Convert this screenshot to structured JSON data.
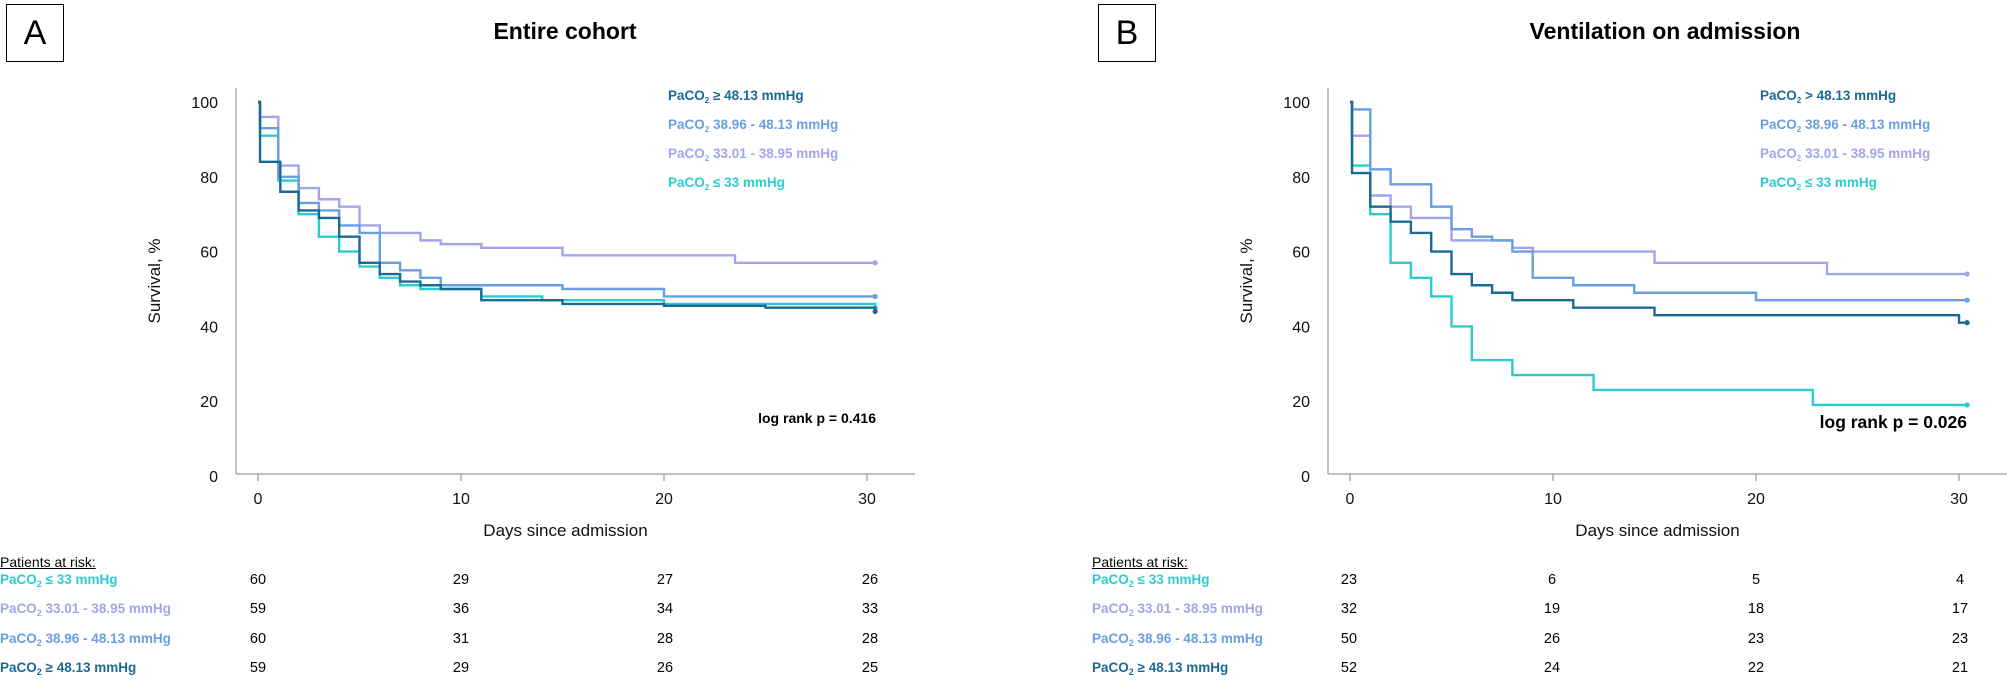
{
  "chart_data": [
    {
      "type": "line",
      "panel_label": "A",
      "title": "Entire cohort",
      "xlabel": "Days since admission",
      "ylabel": "Survival, %",
      "xlim": [
        -1,
        32
      ],
      "ylim": [
        0,
        100
      ],
      "x_ticks": [
        0,
        10,
        20,
        30
      ],
      "y_ticks": [
        0,
        20,
        40,
        60,
        80,
        100
      ],
      "grid": false,
      "legend_position": "top-right",
      "annotation": "log rank p = 0.416",
      "step": true,
      "series": [
        {
          "name": "PaCO2 ≥ 48.13 mmHg",
          "color": "#1b6a94",
          "x": [
            0,
            0.1,
            1.1,
            2,
            3,
            4,
            5,
            6,
            7,
            8,
            9,
            11,
            15,
            20,
            25,
            30.4
          ],
          "y": [
            100,
            84,
            76,
            71,
            69,
            64,
            57,
            54,
            52,
            51,
            50,
            47,
            46,
            45.5,
            45,
            44
          ]
        },
        {
          "name": "PaCO2 38.96 - 48.13 mmHg",
          "color": "#6a9ee4",
          "x": [
            0,
            0.1,
            1,
            2,
            3,
            4,
            5,
            6,
            7,
            8,
            9,
            10,
            11,
            15,
            20,
            30.4
          ],
          "y": [
            100,
            93,
            80,
            73,
            71,
            67,
            65,
            57,
            55,
            53,
            51,
            51,
            51,
            50,
            48,
            48
          ]
        },
        {
          "name": "PaCO2 33.01 - 38.95 mmHg",
          "color": "#a2a4ec",
          "x": [
            0,
            0.1,
            1,
            2,
            3,
            4,
            5,
            6,
            8,
            9,
            11,
            15,
            23.5,
            30.4
          ],
          "y": [
            100,
            96,
            83,
            77,
            74,
            72,
            67,
            65,
            63,
            62,
            61,
            59,
            57,
            57
          ]
        },
        {
          "name": "PaCO2 ≤ 33 mmHg",
          "color": "#2bccd0",
          "x": [
            0,
            0.1,
            1,
            2,
            3,
            4,
            5,
            6,
            7,
            8,
            11,
            14,
            20,
            30.4
          ],
          "y": [
            100,
            91,
            79,
            70,
            64,
            60,
            56,
            53,
            51,
            50,
            48,
            47,
            46,
            45
          ]
        }
      ],
      "risk_table": {
        "header": "Patients at risk:",
        "times": [
          0,
          10,
          20,
          30
        ],
        "rows": [
          {
            "label": "PaCO₂ ≤ 33 mmHg",
            "color": "#2bccd0",
            "values": [
              "60",
              "29",
              "27",
              "26"
            ]
          },
          {
            "label": "PaCO₂ 33.01 - 38.95 mmHg",
            "color": "#a2a4ec",
            "values": [
              "59",
              "36",
              "34",
              "33"
            ]
          },
          {
            "label": "PaCO₂ 38.96 - 48.13 mmHg",
            "color": "#6a9ee4",
            "values": [
              "60",
              "31",
              "28",
              "28"
            ]
          },
          {
            "label": "PaCO₂ ≥ 48.13 mmHg",
            "color": "#1b6a94",
            "values": [
              "59",
              "29",
              "26",
              "25"
            ]
          }
        ]
      }
    },
    {
      "type": "line",
      "panel_label": "B",
      "title": "Ventilation on admission",
      "xlabel": "Days since admission",
      "ylabel": "Survival, %",
      "xlim": [
        -1,
        32
      ],
      "ylim": [
        0,
        100
      ],
      "x_ticks": [
        0,
        10,
        20,
        30
      ],
      "y_ticks": [
        0,
        20,
        40,
        60,
        80,
        100
      ],
      "grid": false,
      "legend_position": "top-right",
      "annotation": "log rank p = 0.026",
      "step": true,
      "series": [
        {
          "name": "PaCO2 > 48.13 mmHg",
          "color": "#1b6a94",
          "x": [
            0,
            0.1,
            1,
            2,
            3,
            4,
            5,
            6,
            7,
            8,
            11,
            15,
            20,
            30,
            30.4
          ],
          "y": [
            100,
            81,
            72,
            68,
            65,
            60,
            54,
            51,
            49,
            47,
            45,
            43,
            43,
            41,
            41
          ]
        },
        {
          "name": "PaCO2 38.96 - 48.13 mmHg",
          "color": "#6a9ee4",
          "x": [
            0,
            0.1,
            1,
            2,
            4,
            5,
            6,
            7,
            8,
            9,
            11,
            14,
            20,
            30.4
          ],
          "y": [
            100,
            98,
            82,
            78,
            72,
            66,
            64,
            63,
            60,
            53,
            51,
            49,
            47,
            47
          ]
        },
        {
          "name": "PaCO2 33.01 - 38.95 mmHg",
          "color": "#a2a4ec",
          "x": [
            0,
            0.1,
            1,
            2,
            3,
            5,
            8,
            9,
            15,
            23.5,
            30.4
          ],
          "y": [
            100,
            91,
            75,
            72,
            69,
            63,
            61,
            60,
            57,
            54,
            54
          ]
        },
        {
          "name": "PaCO2 ≤ 33 mmHg",
          "color": "#2bccd0",
          "x": [
            0,
            0.1,
            1,
            2,
            3,
            4,
            5,
            6,
            8,
            12,
            22.8,
            30.4
          ],
          "y": [
            100,
            83,
            70,
            57,
            53,
            48,
            40,
            31,
            27,
            23,
            19,
            19
          ]
        }
      ],
      "risk_table": {
        "header": "Patients at risk:",
        "times": [
          0,
          10,
          20,
          30
        ],
        "rows": [
          {
            "label": "PaCO₂ ≤ 33 mmHg",
            "color": "#2bccd0",
            "values": [
              "23",
              "6",
              "5",
              "4"
            ]
          },
          {
            "label": "PaCO₂ 33.01 - 38.95 mmHg",
            "color": "#a2a4ec",
            "values": [
              "32",
              "19",
              "18",
              "17"
            ]
          },
          {
            "label": "PaCO₂ 38.96 - 48.13 mmHg",
            "color": "#6a9ee4",
            "values": [
              "50",
              "26",
              "23",
              "23"
            ]
          },
          {
            "label": "PaCO₂ ≥ 48.13 mmHg",
            "color": "#1b6a94",
            "values": [
              "52",
              "24",
              "22",
              "21"
            ]
          }
        ]
      }
    }
  ]
}
